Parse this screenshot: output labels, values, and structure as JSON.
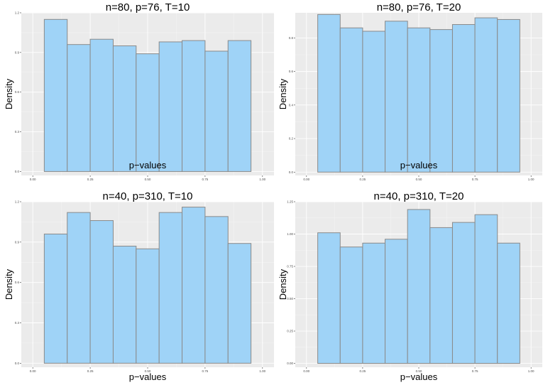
{
  "chart_data": [
    {
      "type": "bar",
      "title": "n=80, p=76, T=10",
      "xlabel": "p−values",
      "ylabel": "Density",
      "bin_edges": [
        0.05,
        0.15,
        0.25,
        0.35,
        0.45,
        0.55,
        0.65,
        0.75,
        0.85,
        0.95
      ],
      "values": [
        1.15,
        0.96,
        1.0,
        0.95,
        0.89,
        0.98,
        0.99,
        0.91,
        0.99
      ],
      "xlim": [
        -0.05,
        1.05
      ],
      "ylim": [
        -0.03,
        1.2
      ],
      "xticks": [
        0.0,
        0.25,
        0.5,
        0.75,
        1.0
      ],
      "xtick_labels": [
        "0.00",
        "0.25",
        "0.50",
        "0.75",
        "1.00"
      ],
      "yticks": [
        0.0,
        0.3,
        0.6,
        0.9,
        1.2
      ],
      "ytick_labels": [
        "0.0",
        "0.3",
        "0.6",
        "0.9",
        "1.2"
      ],
      "grid": true
    },
    {
      "type": "bar",
      "title": "n=80, p=76, T=20",
      "xlabel": "p−values",
      "ylabel": "Density",
      "bin_edges": [
        0.05,
        0.15,
        0.25,
        0.35,
        0.45,
        0.55,
        0.65,
        0.75,
        0.85,
        0.95
      ],
      "values": [
        0.94,
        0.86,
        0.84,
        0.9,
        0.86,
        0.85,
        0.88,
        0.92,
        0.91
      ],
      "xlim": [
        -0.05,
        1.05
      ],
      "ylim": [
        -0.02,
        0.95
      ],
      "xticks": [
        0.0,
        0.25,
        0.5,
        0.75,
        1.0
      ],
      "xtick_labels": [
        "0.00",
        "0.25",
        "0.50",
        "0.75",
        "1.00"
      ],
      "yticks": [
        0.0,
        0.2,
        0.4,
        0.6,
        0.8
      ],
      "ytick_labels": [
        "0.0",
        "0.2",
        "0.4",
        "0.6",
        "0.8"
      ],
      "grid": true
    },
    {
      "type": "bar",
      "title": "n=40, p=310, T=10",
      "xlabel": "p−values",
      "ylabel": "Density",
      "bin_edges": [
        0.05,
        0.15,
        0.25,
        0.35,
        0.45,
        0.55,
        0.65,
        0.75,
        0.85,
        0.95
      ],
      "values": [
        0.96,
        1.12,
        1.06,
        0.87,
        0.85,
        1.12,
        1.16,
        1.09,
        0.89
      ],
      "xlim": [
        -0.05,
        1.05
      ],
      "ylim": [
        -0.03,
        1.2
      ],
      "xticks": [
        0.0,
        0.25,
        0.5,
        0.75,
        1.0
      ],
      "xtick_labels": [
        "0.00",
        "0.25",
        "0.50",
        "0.75",
        "1.00"
      ],
      "yticks": [
        0.0,
        0.3,
        0.6,
        0.9,
        1.2
      ],
      "ytick_labels": [
        "0.0",
        "0.3",
        "0.6",
        "0.9",
        "1.2"
      ],
      "grid": true
    },
    {
      "type": "bar",
      "title": "n=40, p=310, T=20",
      "xlabel": "p−values",
      "ylabel": "Density",
      "bin_edges": [
        0.05,
        0.15,
        0.25,
        0.35,
        0.45,
        0.55,
        0.65,
        0.75,
        0.85,
        0.95
      ],
      "values": [
        1.01,
        0.9,
        0.93,
        0.96,
        1.19,
        1.05,
        1.09,
        1.15,
        0.93
      ],
      "xlim": [
        -0.05,
        1.05
      ],
      "ylim": [
        -0.03,
        1.25
      ],
      "xticks": [
        0.0,
        0.25,
        0.5,
        0.75,
        1.0
      ],
      "xtick_labels": [
        "0.00",
        "0.25",
        "0.50",
        "0.75",
        "1.00"
      ],
      "yticks": [
        0.0,
        0.25,
        0.5,
        0.75,
        1.0,
        1.25
      ],
      "ytick_labels": [
        "0.00",
        "0.25",
        "0.50",
        "0.75",
        "1.00",
        "1.25"
      ],
      "grid": true
    }
  ]
}
